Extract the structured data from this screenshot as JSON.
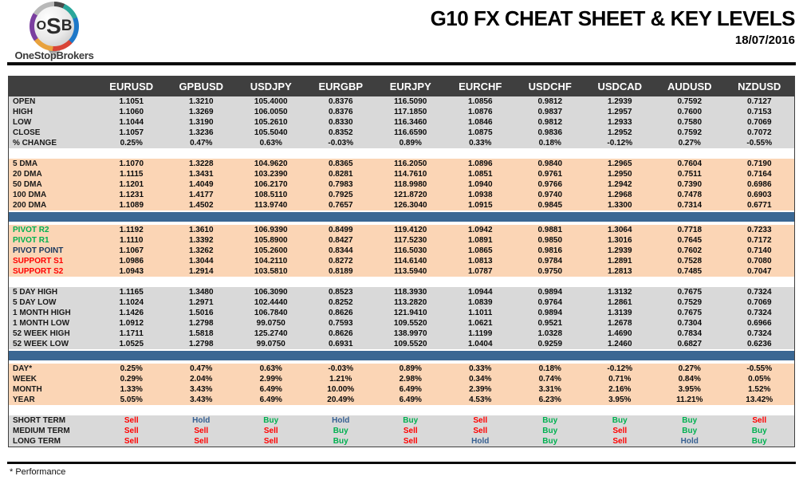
{
  "logo": {
    "letters": [
      "O",
      "S",
      "B"
    ],
    "brand": "OneStopBrokers"
  },
  "header": {
    "title": "G10 FX CHEAT SHEET & KEY LEVELS",
    "date": "18/07/2016"
  },
  "footnote": "* Performance",
  "colors": {
    "header_bg": "#3F3F3F",
    "section_gray": "#D9D9D9",
    "section_peach": "#FBD5B5",
    "separator_blue": "#3A6793",
    "pivot_resistance": "#00B050",
    "pivot_point": "#17375E",
    "support": "#FF0000",
    "signals": {
      "Sell": "#FF0000",
      "Hold": "#376092",
      "Buy": "#00B050"
    }
  },
  "table": {
    "columns": [
      "EURUSD",
      "GPBUSD",
      "USDJPY",
      "EURGBP",
      "EURJPY",
      "EURCHF",
      "USDCHF",
      "USDCAD",
      "AUDUSD",
      "NZDUSD"
    ],
    "sections": [
      {
        "name": "ohlc",
        "bg": "gray",
        "divider_after": "gap",
        "rows": [
          {
            "label": "OPEN",
            "values": [
              "1.1051",
              "1.3210",
              "105.4000",
              "0.8376",
              "116.5090",
              "1.0856",
              "0.9812",
              "1.2939",
              "0.7592",
              "0.7127"
            ]
          },
          {
            "label": "HIGH",
            "values": [
              "1.1060",
              "1.3269",
              "106.0050",
              "0.8376",
              "117.1850",
              "1.0876",
              "0.9837",
              "1.2957",
              "0.7600",
              "0.7153"
            ]
          },
          {
            "label": "LOW",
            "values": [
              "1.1044",
              "1.3190",
              "105.2610",
              "0.8330",
              "116.3460",
              "1.0846",
              "0.9812",
              "1.2933",
              "0.7580",
              "0.7069"
            ]
          },
          {
            "label": "CLOSE",
            "values": [
              "1.1057",
              "1.3236",
              "105.5040",
              "0.8352",
              "116.6590",
              "1.0875",
              "0.9836",
              "1.2952",
              "0.7592",
              "0.7072"
            ]
          },
          {
            "label": "% CHANGE",
            "values": [
              "0.25%",
              "0.47%",
              "0.63%",
              "-0.03%",
              "0.89%",
              "0.33%",
              "0.18%",
              "-0.12%",
              "0.27%",
              "-0.55%"
            ]
          }
        ]
      },
      {
        "name": "dma",
        "bg": "peach",
        "divider_after": "blue",
        "rows": [
          {
            "label": "5 DMA",
            "values": [
              "1.1070",
              "1.3228",
              "104.9620",
              "0.8365",
              "116.2050",
              "1.0896",
              "0.9840",
              "1.2965",
              "0.7604",
              "0.7190"
            ]
          },
          {
            "label": "20 DMA",
            "values": [
              "1.1115",
              "1.3431",
              "103.2390",
              "0.8281",
              "114.7610",
              "1.0851",
              "0.9761",
              "1.2950",
              "0.7511",
              "0.7164"
            ]
          },
          {
            "label": "50 DMA",
            "values": [
              "1.1201",
              "1.4049",
              "106.2170",
              "0.7983",
              "118.9980",
              "1.0940",
              "0.9766",
              "1.2942",
              "0.7390",
              "0.6986"
            ]
          },
          {
            "label": "100 DMA",
            "values": [
              "1.1231",
              "1.4177",
              "108.5110",
              "0.7925",
              "121.8720",
              "1.0938",
              "0.9740",
              "1.2968",
              "0.7478",
              "0.6903"
            ]
          },
          {
            "label": "200 DMA",
            "values": [
              "1.1089",
              "1.4502",
              "113.9740",
              "0.7657",
              "126.3040",
              "1.0915",
              "0.9845",
              "1.3300",
              "0.7314",
              "0.6771"
            ]
          }
        ]
      },
      {
        "name": "pivots",
        "bg": "peach",
        "divider_after": "gap",
        "rows": [
          {
            "label": "PIVOT R2",
            "label_color": "#00B050",
            "values": [
              "1.1192",
              "1.3610",
              "106.9390",
              "0.8499",
              "119.4120",
              "1.0942",
              "0.9881",
              "1.3064",
              "0.7718",
              "0.7233"
            ]
          },
          {
            "label": "PIVOT R1",
            "label_color": "#00B050",
            "values": [
              "1.1110",
              "1.3392",
              "105.8900",
              "0.8427",
              "117.5230",
              "1.0891",
              "0.9850",
              "1.3016",
              "0.7645",
              "0.7172"
            ]
          },
          {
            "label": "PIVOT POINT",
            "label_color": "#17375E",
            "values": [
              "1.1067",
              "1.3262",
              "105.2600",
              "0.8344",
              "116.5030",
              "1.0865",
              "0.9816",
              "1.2939",
              "0.7602",
              "0.7140"
            ]
          },
          {
            "label": "SUPPORT S1",
            "label_color": "#FF0000",
            "values": [
              "1.0986",
              "1.3044",
              "104.2110",
              "0.8272",
              "114.6140",
              "1.0813",
              "0.9784",
              "1.2891",
              "0.7528",
              "0.7080"
            ]
          },
          {
            "label": "SUPPORT S2",
            "label_color": "#FF0000",
            "values": [
              "1.0943",
              "1.2914",
              "103.5810",
              "0.8189",
              "113.5940",
              "1.0787",
              "0.9750",
              "1.2813",
              "0.7485",
              "0.7047"
            ]
          }
        ]
      },
      {
        "name": "ranges",
        "bg": "gray",
        "divider_after": "blue",
        "rows": [
          {
            "label": "5 DAY HIGH",
            "values": [
              "1.1165",
              "1.3480",
              "106.3090",
              "0.8523",
              "118.3930",
              "1.0944",
              "0.9894",
              "1.3132",
              "0.7675",
              "0.7324"
            ]
          },
          {
            "label": "5 DAY LOW",
            "values": [
              "1.1024",
              "1.2971",
              "102.4440",
              "0.8252",
              "113.2820",
              "1.0839",
              "0.9764",
              "1.2861",
              "0.7529",
              "0.7069"
            ]
          },
          {
            "label": "1 MONTH HIGH",
            "values": [
              "1.1426",
              "1.5016",
              "106.7840",
              "0.8626",
              "121.9410",
              "1.1011",
              "0.9894",
              "1.3139",
              "0.7675",
              "0.7324"
            ]
          },
          {
            "label": "1 MONTH LOW",
            "values": [
              "1.0912",
              "1.2798",
              "99.0750",
              "0.7593",
              "109.5520",
              "1.0621",
              "0.9521",
              "1.2678",
              "0.7304",
              "0.6966"
            ]
          },
          {
            "label": "52 WEEK HIGH",
            "values": [
              "1.1711",
              "1.5818",
              "125.2740",
              "0.8626",
              "138.9970",
              "1.1199",
              "1.0328",
              "1.4690",
              "0.7834",
              "0.7324"
            ]
          },
          {
            "label": "52 WEEK LOW",
            "values": [
              "1.0525",
              "1.2798",
              "99.0750",
              "0.6931",
              "109.5520",
              "1.0404",
              "0.9259",
              "1.2460",
              "0.6827",
              "0.6236"
            ]
          }
        ]
      },
      {
        "name": "performance",
        "bg": "peach",
        "divider_after": "gap",
        "rows": [
          {
            "label": "DAY*",
            "values": [
              "0.25%",
              "0.47%",
              "0.63%",
              "-0.03%",
              "0.89%",
              "0.33%",
              "0.18%",
              "-0.12%",
              "0.27%",
              "-0.55%"
            ]
          },
          {
            "label": "WEEK",
            "values": [
              "0.29%",
              "2.04%",
              "2.99%",
              "1.21%",
              "2.98%",
              "0.34%",
              "0.74%",
              "0.71%",
              "0.84%",
              "0.05%"
            ]
          },
          {
            "label": "MONTH",
            "values": [
              "1.33%",
              "3.43%",
              "6.49%",
              "10.00%",
              "6.49%",
              "2.39%",
              "3.31%",
              "2.16%",
              "3.95%",
              "1.52%"
            ]
          },
          {
            "label": "YEAR",
            "values": [
              "5.05%",
              "3.43%",
              "6.49%",
              "20.49%",
              "6.49%",
              "4.53%",
              "6.23%",
              "3.95%",
              "11.21%",
              "13.42%"
            ]
          }
        ]
      },
      {
        "name": "signals",
        "bg": "gray",
        "divider_after": "none",
        "rows": [
          {
            "label": "SHORT TERM",
            "values": [
              "Sell",
              "Hold",
              "Buy",
              "Hold",
              "Buy",
              "Sell",
              "Buy",
              "Buy",
              "Buy",
              "Sell"
            ]
          },
          {
            "label": "MEDIUM TERM",
            "values": [
              "Sell",
              "Sell",
              "Sell",
              "Buy",
              "Sell",
              "Sell",
              "Buy",
              "Sell",
              "Buy",
              "Buy"
            ]
          },
          {
            "label": "LONG TERM",
            "values": [
              "Sell",
              "Sell",
              "Sell",
              "Buy",
              "Sell",
              "Hold",
              "Buy",
              "Sell",
              "Hold",
              "Buy"
            ]
          }
        ]
      }
    ]
  }
}
